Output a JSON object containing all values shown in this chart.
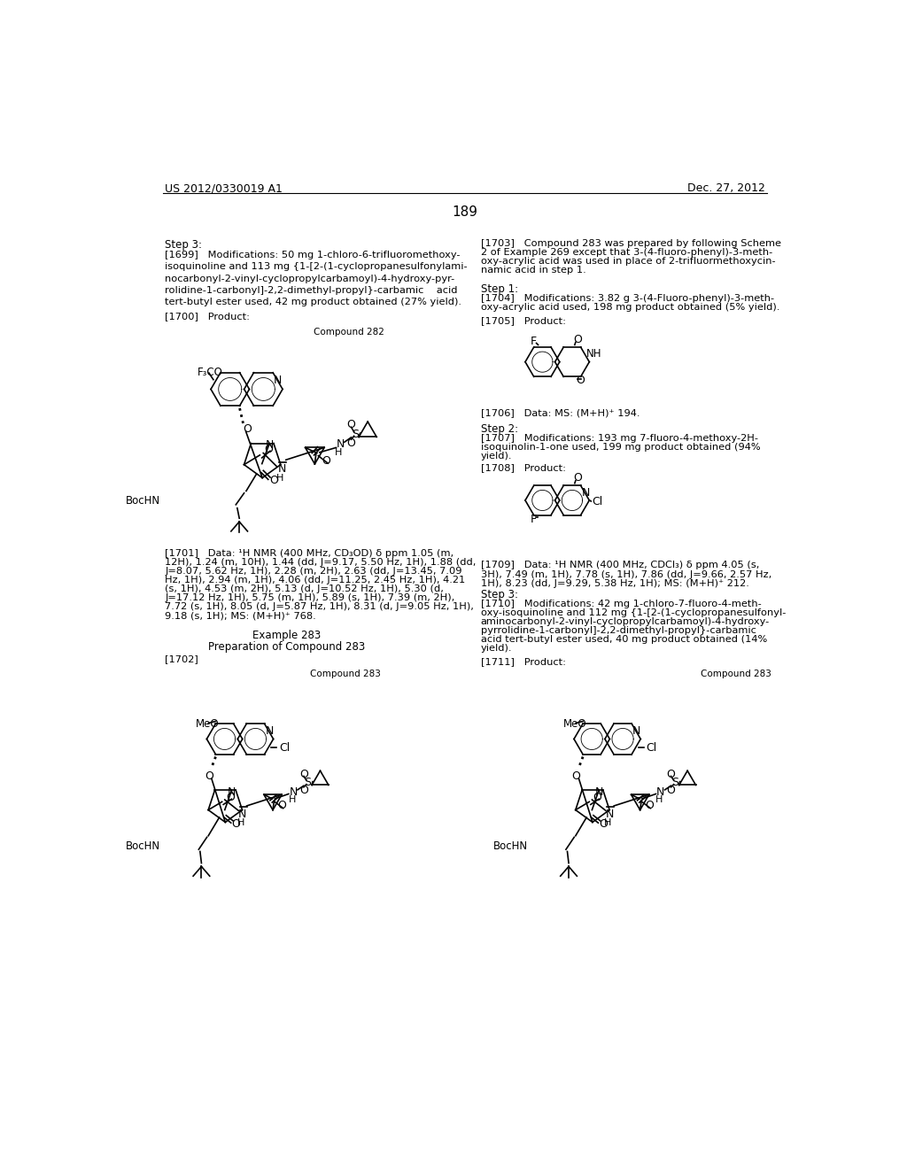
{
  "page_number": "189",
  "header_left": "US 2012/0330019 A1",
  "header_right": "Dec. 27, 2012",
  "background_color": "#ffffff",
  "text_color": "#000000",
  "font_size_body": 8.5,
  "font_size_small": 7.5,
  "font_size_header": 9,
  "font_size_page_num": 11
}
